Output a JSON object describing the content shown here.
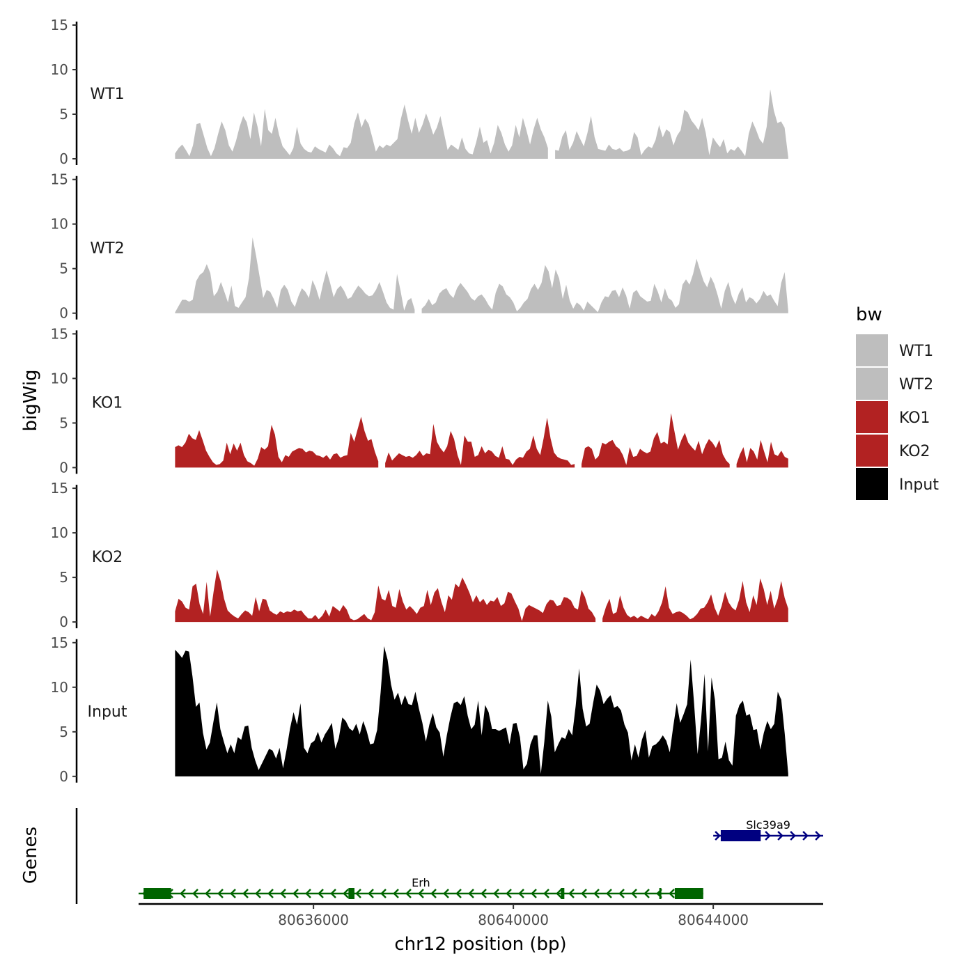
{
  "chart_data": {
    "type": "area",
    "ylabel": "bigWig",
    "genes_label": "Genes",
    "xlabel": "chr12 position (bp)",
    "ylim": [
      0,
      15
    ],
    "yticks": [
      0,
      5,
      10,
      15
    ],
    "xlim": [
      80632500,
      80646200
    ],
    "xticks": [
      80636000,
      80640000,
      80644000
    ],
    "xtick_labels": [
      "80636000",
      "80640000",
      "80644000"
    ],
    "data_range": [
      80633230,
      80645500
    ],
    "legend": {
      "title": "bw",
      "entries": [
        {
          "label": "WT1",
          "color": "#bebebe"
        },
        {
          "label": "WT2",
          "color": "#bebebe"
        },
        {
          "label": "KO1",
          "color": "#b22222"
        },
        {
          "label": "KO2",
          "color": "#b22222"
        },
        {
          "label": "Input",
          "color": "#000000"
        }
      ]
    },
    "series": [
      {
        "name": "WT1",
        "color": "#bebebe",
        "values": [
          0.6,
          1.2,
          1.6,
          1.0,
          0.3,
          1.5,
          3.9,
          4.0,
          2.6,
          1.2,
          0.3,
          1.2,
          2.8,
          4.2,
          3.2,
          1.5,
          0.8,
          2.0,
          3.6,
          4.8,
          4.1,
          2.2,
          5.2,
          3.6,
          1.4,
          5.6,
          3.2,
          2.8,
          4.6,
          2.7,
          1.4,
          0.9,
          0.4,
          1.2,
          3.6,
          1.7,
          1.1,
          0.8,
          0.7,
          1.4,
          1.1,
          0.9,
          0.7,
          1.6,
          1.2,
          0.6,
          0.3,
          1.3,
          1.2,
          1.8,
          4.0,
          5.2,
          3.5,
          4.5,
          3.9,
          2.4,
          0.8,
          1.5,
          1.2,
          1.6,
          1.4,
          1.8,
          2.2,
          4.5,
          6.1,
          4.3,
          2.8,
          4.6,
          2.9,
          3.8,
          5.1,
          4.0,
          2.7,
          3.5,
          4.8,
          2.9,
          1.0,
          1.6,
          1.3,
          1.0,
          2.4,
          1.1,
          0.6,
          0.5,
          1.9,
          3.6,
          1.8,
          2.1,
          0.6,
          1.8,
          3.8,
          2.9,
          1.6,
          0.8,
          1.5,
          3.8,
          2.4,
          4.6,
          3.2,
          1.6,
          3.3,
          4.6,
          3.3,
          2.4,
          1.2,
          -1,
          1.0,
          0.9,
          2.5,
          3.2,
          1.0,
          1.8,
          3.1,
          2.2,
          1.4,
          2.9,
          4.8,
          2.4,
          1.1,
          1.0,
          0.9,
          1.6,
          1.1,
          1.0,
          1.2,
          0.8,
          0.9,
          1.1,
          3.0,
          2.4,
          0.4,
          1.0,
          1.4,
          1.2,
          2.1,
          3.8,
          2.4,
          3.3,
          3.0,
          1.5,
          2.6,
          3.2,
          5.5,
          5.2,
          4.3,
          3.8,
          3.2,
          4.6,
          2.9,
          0.4,
          2.4,
          1.8,
          1.3,
          2.2,
          0.6,
          1.1,
          0.9,
          1.4,
          0.9,
          0.3,
          2.8,
          4.2,
          3.3,
          2.2,
          1.7,
          3.6,
          7.8,
          5.4,
          4.0,
          4.2,
          3.5,
          0.2
        ]
      },
      {
        "name": "WT2",
        "color": "#bebebe",
        "values": [
          0.1,
          0.8,
          1.5,
          1.5,
          1.3,
          1.5,
          3.6,
          4.3,
          4.6,
          5.5,
          4.5,
          1.9,
          2.4,
          3.5,
          2.4,
          1.2,
          3.1,
          0.8,
          0.6,
          1.2,
          1.8,
          4.0,
          8.5,
          6.4,
          4.1,
          1.7,
          2.6,
          2.4,
          1.6,
          0.6,
          2.6,
          3.2,
          2.6,
          1.3,
          0.7,
          1.9,
          2.8,
          2.4,
          1.7,
          3.7,
          2.8,
          1.5,
          3.3,
          4.8,
          3.4,
          1.8,
          2.7,
          3.1,
          2.5,
          1.6,
          1.8,
          2.5,
          3.1,
          2.7,
          2.2,
          1.9,
          2.0,
          2.6,
          3.5,
          2.4,
          1.2,
          0.6,
          0.4,
          4.4,
          2.5,
          0.3,
          1.4,
          1.7,
          0.4,
          -1,
          0.5,
          0.9,
          1.6,
          0.9,
          1.2,
          2.2,
          2.6,
          2.8,
          2.1,
          1.7,
          2.8,
          3.4,
          2.9,
          2.4,
          1.7,
          1.4,
          1.9,
          2.1,
          1.6,
          0.9,
          0.4,
          2.3,
          3.3,
          3.0,
          2.1,
          1.8,
          1.2,
          0.2,
          0.6,
          1.2,
          1.6,
          2.7,
          3.3,
          2.6,
          3.4,
          5.4,
          4.7,
          2.8,
          4.9,
          3.9,
          1.6,
          3.2,
          1.4,
          0.5,
          1.2,
          0.9,
          0.3,
          1.3,
          0.9,
          0.5,
          0.1,
          1.2,
          1.9,
          1.8,
          2.5,
          2.6,
          1.8,
          2.9,
          2.0,
          0.5,
          2.3,
          2.6,
          1.9,
          1.6,
          1.3,
          1.4,
          3.3,
          2.4,
          1.2,
          2.8,
          1.7,
          1.4,
          0.6,
          1.0,
          3.2,
          3.8,
          3.2,
          4.4,
          6.1,
          4.8,
          3.6,
          2.9,
          4.1,
          3.3,
          2.0,
          0.5,
          2.5,
          3.5,
          1.9,
          1.0,
          2.2,
          2.9,
          1.2,
          1.8,
          1.6,
          1.1,
          1.6,
          2.5,
          1.9,
          2.1,
          1.4,
          0.8,
          3.4,
          4.6,
          0.3
        ]
      },
      {
        "name": "KO1",
        "color": "#b22222",
        "values": [
          2.3,
          2.5,
          2.3,
          2.8,
          3.8,
          3.3,
          3.1,
          4.2,
          3.1,
          1.9,
          1.2,
          0.6,
          0.3,
          0.4,
          0.8,
          2.8,
          1.5,
          2.7,
          1.9,
          2.8,
          1.4,
          0.7,
          0.5,
          0.2,
          1.0,
          2.3,
          2.0,
          2.4,
          4.8,
          3.7,
          1.2,
          0.6,
          1.4,
          1.2,
          1.8,
          2.0,
          2.2,
          2.1,
          1.7,
          1.9,
          1.8,
          1.4,
          1.3,
          1.1,
          1.4,
          0.9,
          1.5,
          1.6,
          1.1,
          1.3,
          1.4,
          3.9,
          2.9,
          4.3,
          5.7,
          4.1,
          3.0,
          3.2,
          1.8,
          0.7,
          -1,
          0.5,
          1.7,
          0.8,
          1.2,
          1.6,
          1.4,
          1.2,
          1.3,
          1.1,
          1.4,
          1.9,
          1.3,
          1.6,
          1.5,
          4.9,
          2.9,
          2.2,
          1.7,
          2.4,
          4.1,
          3.2,
          1.4,
          0.3,
          3.6,
          2.9,
          2.9,
          1.2,
          1.4,
          2.4,
          1.6,
          2.0,
          1.8,
          1.3,
          1.1,
          2.4,
          1.0,
          0.9,
          0.3,
          0.9,
          1.2,
          1.1,
          1.8,
          2.1,
          3.6,
          2.1,
          1.4,
          3.3,
          5.6,
          3.3,
          1.7,
          1.2,
          1.0,
          0.9,
          0.8,
          0.3,
          0.4,
          -1,
          0.4,
          2.2,
          2.4,
          2.1,
          0.9,
          1.3,
          2.8,
          2.6,
          2.9,
          3.1,
          2.4,
          2.1,
          1.4,
          0.3,
          2.3,
          1.2,
          1.3,
          2.1,
          1.8,
          1.6,
          1.8,
          3.3,
          4.0,
          2.7,
          2.9,
          2.6,
          6.1,
          4.0,
          2.0,
          3.1,
          3.9,
          2.8,
          2.3,
          1.9,
          3.0,
          1.5,
          2.5,
          3.2,
          2.8,
          2.2,
          3.1,
          1.5,
          0.8,
          0.4,
          -1,
          0.4,
          1.5,
          2.3,
          0.6,
          2.2,
          1.8,
          0.9,
          3.1,
          1.8,
          0.6,
          2.9,
          1.5,
          1.3,
          1.9,
          1.2,
          1.0
        ]
      },
      {
        "name": "KO2",
        "color": "#b22222",
        "values": [
          1.2,
          2.6,
          2.3,
          1.6,
          1.4,
          4.0,
          4.3,
          2.0,
          0.9,
          4.5,
          0.6,
          3.4,
          5.9,
          4.6,
          2.6,
          1.3,
          0.9,
          0.6,
          0.4,
          0.9,
          1.3,
          1.1,
          0.7,
          2.8,
          1.2,
          2.6,
          2.5,
          1.3,
          1.0,
          0.8,
          1.2,
          1.0,
          1.2,
          1.1,
          1.4,
          1.2,
          1.3,
          0.8,
          0.4,
          0.4,
          0.8,
          0.3,
          0.7,
          1.4,
          0.6,
          1.8,
          1.5,
          1.2,
          1.9,
          1.4,
          0.4,
          0.2,
          0.3,
          0.6,
          0.9,
          0.4,
          0.2,
          1.1,
          4.1,
          2.6,
          2.4,
          3.6,
          1.8,
          1.6,
          3.7,
          2.3,
          1.4,
          1.8,
          1.4,
          0.9,
          1.6,
          1.8,
          3.6,
          1.9,
          3.3,
          3.8,
          2.3,
          1.1,
          3.0,
          2.5,
          4.3,
          3.9,
          5.0,
          4.2,
          3.3,
          2.2,
          3.0,
          2.2,
          2.6,
          1.9,
          2.4,
          2.3,
          2.8,
          1.8,
          2.1,
          3.4,
          3.2,
          2.3,
          1.5,
          0.1,
          1.5,
          1.9,
          1.7,
          1.5,
          1.3,
          1.0,
          2.0,
          2.5,
          2.4,
          1.8,
          1.9,
          2.8,
          2.7,
          2.4,
          1.6,
          1.4,
          3.6,
          2.8,
          1.5,
          1.1,
          0.4,
          -1,
          0.4,
          1.7,
          2.6,
          0.9,
          1.1,
          3.0,
          1.6,
          0.8,
          0.5,
          0.7,
          0.4,
          0.7,
          0.5,
          0.3,
          0.9,
          0.6,
          1.2,
          2.2,
          4.0,
          1.6,
          0.9,
          1.1,
          1.2,
          1.0,
          0.7,
          0.3,
          0.5,
          0.9,
          1.5,
          1.6,
          2.2,
          3.1,
          1.6,
          0.7,
          1.8,
          3.4,
          2.2,
          1.6,
          1.3,
          2.5,
          4.6,
          2.2,
          1.1,
          3.0,
          1.9,
          4.9,
          3.7,
          1.9,
          3.5,
          1.5,
          2.6,
          4.6,
          2.7,
          1.5
        ]
      },
      {
        "name": "Input",
        "color": "#000000",
        "values": [
          14.2,
          13.8,
          13.3,
          14.1,
          14.0,
          11.2,
          7.8,
          8.3,
          4.9,
          3.0,
          3.8,
          6.1,
          8.3,
          5.3,
          3.9,
          2.6,
          3.6,
          2.6,
          4.4,
          4.1,
          5.6,
          5.7,
          3.2,
          1.8,
          0.7,
          1.5,
          2.3,
          3.1,
          2.9,
          2.0,
          3.2,
          0.9,
          3.0,
          5.4,
          7.2,
          5.8,
          8.2,
          3.2,
          2.6,
          3.7,
          4.0,
          5.0,
          3.8,
          4.7,
          5.3,
          6.0,
          3.1,
          4.3,
          6.6,
          6.2,
          5.4,
          5.1,
          5.9,
          4.7,
          6.2,
          5.1,
          3.6,
          3.7,
          5.2,
          9.4,
          14.6,
          13.1,
          10.3,
          8.6,
          9.4,
          8.0,
          9.1,
          8.1,
          8.0,
          9.5,
          7.6,
          6.0,
          3.9,
          5.8,
          7.1,
          5.5,
          4.9,
          2.2,
          4.6,
          6.6,
          8.2,
          8.4,
          8.0,
          9.0,
          6.8,
          5.3,
          5.8,
          8.5,
          4.6,
          8.0,
          7.2,
          5.3,
          5.3,
          5.1,
          5.3,
          5.5,
          3.6,
          5.9,
          6.0,
          4.4,
          0.8,
          1.4,
          3.6,
          4.6,
          4.6,
          0.3,
          3.9,
          8.5,
          6.7,
          2.7,
          3.6,
          4.4,
          4.2,
          5.3,
          4.6,
          7.9,
          12.1,
          7.6,
          5.6,
          5.9,
          8.2,
          10.3,
          9.6,
          8.1,
          8.7,
          9.1,
          7.7,
          7.9,
          7.4,
          5.8,
          4.9,
          1.8,
          3.6,
          2.1,
          4.1,
          5.2,
          2.1,
          3.4,
          3.6,
          4.0,
          4.6,
          4.0,
          2.7,
          5.6,
          8.2,
          6.0,
          7.0,
          8.1,
          13.1,
          8.1,
          2.5,
          6.4,
          11.5,
          2.8,
          11.1,
          8.5,
          1.9,
          2.1,
          3.9,
          1.8,
          1.2,
          6.8,
          8.0,
          8.5,
          6.8,
          7.0,
          5.2,
          5.3,
          3.0,
          4.9,
          6.2,
          5.3,
          5.9,
          9.5,
          8.6,
          4.8,
          0.3
        ]
      }
    ],
    "genes": [
      {
        "name": "Slc39a9",
        "strand": "+",
        "color": "#000080",
        "start": 80644000,
        "end": 80646200,
        "exons": [
          [
            80644150,
            80644950
          ]
        ]
      },
      {
        "name": "Erh",
        "strand": "-",
        "color": "#006400",
        "start": 80632500,
        "end": 80643800,
        "exons": [
          [
            80632600,
            80633150
          ],
          [
            80636700,
            80636820
          ],
          [
            80640950,
            80641020
          ],
          [
            80642920,
            80642960
          ],
          [
            80643230,
            80643800
          ]
        ]
      }
    ]
  }
}
